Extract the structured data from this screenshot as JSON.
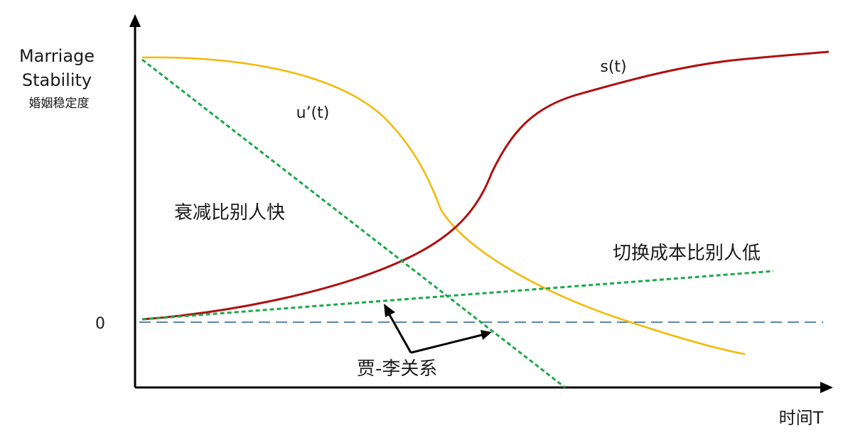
{
  "y_axis": {
    "label_line1": "Marriage",
    "label_line2": "Stability",
    "label_line3": "婚姻稳定度",
    "zero_label": "0"
  },
  "x_axis": {
    "label": "时间T"
  },
  "curves": {
    "s": {
      "label": "s(t)",
      "color": "#b00f0f"
    },
    "u_prime": {
      "label": "u’(t)",
      "color": "#f5b800"
    },
    "fast_decay_line": {
      "color": "#1aa84a"
    },
    "low_switch_cost_line": {
      "color": "#1aa84a"
    },
    "zero_line": {
      "color": "#5b86b0"
    }
  },
  "annotations": {
    "fast_decay": "衰减比别人快",
    "low_switch_cost": "切换成本比别人低",
    "becker_lee": "贾-李关系"
  },
  "icons": {
    "y_arrow": "arrow-up-icon",
    "x_arrow": "arrow-right-icon"
  }
}
